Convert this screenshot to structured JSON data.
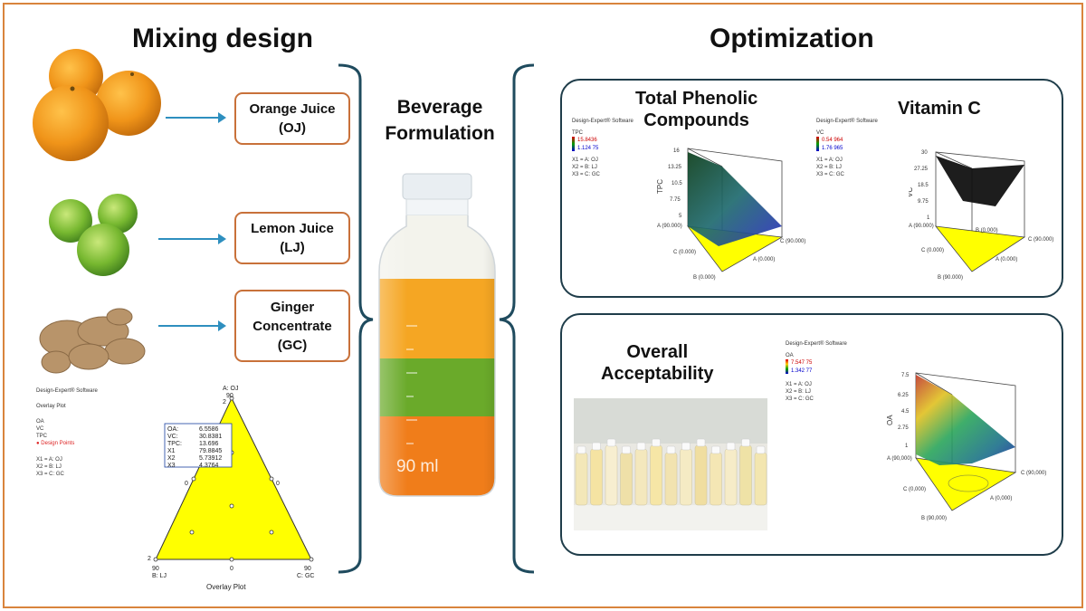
{
  "headings": {
    "mixing": "Mixing design",
    "optimization": "Optimization",
    "formulation_line1": "Beverage",
    "formulation_line2": "Formulation"
  },
  "ingredients": [
    {
      "line1": "Orange Juice",
      "line2": "(OJ)"
    },
    {
      "line1": "Lemon Juice",
      "line2": "(LJ)"
    },
    {
      "line1": "Ginger",
      "line2": "Concentrate",
      "line3": "(GC)"
    }
  ],
  "bottle": {
    "volume_label": "90 ml",
    "layer_colors": [
      "#f5a623",
      "#6aaa2a",
      "#f07d1a"
    ]
  },
  "overlay_plot": {
    "software": "Design-Expert® Software",
    "plot_name": "Overlay Plot",
    "responses": [
      "OA",
      "VC",
      "TPC"
    ],
    "design_points_label": "Design Points",
    "factors": [
      "X1 = A: OJ",
      "X2 = B: LJ",
      "X3 = C: GC"
    ],
    "top_vertex": "A: OJ",
    "top_value": "90",
    "top_count": "2",
    "left_vertex": "B: LJ",
    "left_value": "90",
    "left_count": "2",
    "right_vertex": "C: GC",
    "right_value": "90",
    "bottom_mid": "0",
    "side_left": "0",
    "side_right": "0",
    "caption": "Overlay Plot",
    "tooltip": [
      [
        "OA:",
        "6.5586"
      ],
      [
        "VC:",
        "30.8381"
      ],
      [
        "TPC:",
        "13.696"
      ],
      [
        "X1",
        "79.8845"
      ],
      [
        "X2",
        "5.73912"
      ],
      [
        "X3",
        "4.3764"
      ]
    ],
    "fill_color": "#ffff00"
  },
  "panels": {
    "tpc": {
      "title_line1": "Total Phenolic",
      "title_line2": "Compounds",
      "software": "Design-Expert® Software",
      "resp": "TPC",
      "hi": "15.8436",
      "lo": "1.124 75",
      "factors": [
        "X1 = A: OJ",
        "X2 = B: LJ",
        "X3 = C: GC"
      ],
      "axis": "TPC",
      "ticks": [
        "16",
        "13.25",
        "10.5",
        "7.75",
        "5"
      ],
      "corner_a": "A (90.000)",
      "corner_c": "C (90.000)",
      "corner_b": "B (0.000)",
      "corner_c0": "C (0.000)",
      "corner_a0": "A (0.000)"
    },
    "vc": {
      "title": "Vitamin C",
      "software": "Design-Expert® Software",
      "resp": "VC",
      "hi": "0.54 964",
      "lo": "1.76 965",
      "factors": [
        "X1 = A: OJ",
        "X2 = B: LJ",
        "X3 = C: GC"
      ],
      "axis": "VC",
      "ticks": [
        "30",
        "27.25",
        "18.5",
        "9.75",
        "1"
      ],
      "corner_a": "A (90.000)",
      "corner_b": "B (0.000)",
      "corner_c": "C (90.000)",
      "corner_c0": "C (0.000)",
      "corner_a0": "A (0.000)",
      "corner_b90": "B (90.000)"
    },
    "oa": {
      "title_line1": "Overall",
      "title_line2": "Acceptability",
      "software": "Design-Expert® Software",
      "resp": "OA",
      "hi": "7.547 75",
      "lo": "1.342 77",
      "factors": [
        "X1 = A: OJ",
        "X2 = B: LJ",
        "X3 = C: GC"
      ],
      "axis": "OA",
      "ticks": [
        "7.5",
        "6.25",
        "4.5",
        "2.75",
        "1"
      ],
      "corner_a": "A (90,000)",
      "corner_c": "C (90,000)",
      "corner_c0": "C (0,000)",
      "corner_a0": "A (0,000)",
      "corner_b": "B (90,000)"
    }
  }
}
